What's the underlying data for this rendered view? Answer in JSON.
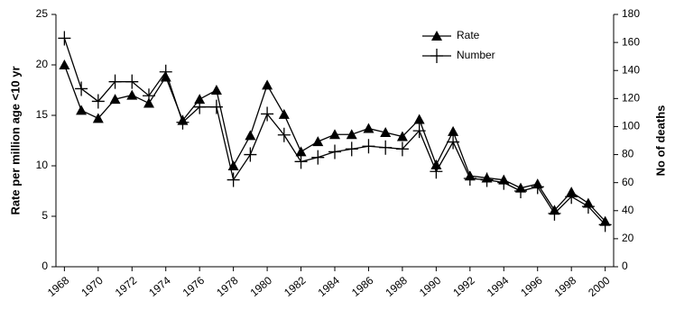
{
  "chart_data": {
    "type": "line",
    "y_label": "Rate per million age <10  yr",
    "y2_label": "No of deaths",
    "x": [
      1968,
      1969,
      1970,
      1971,
      1972,
      1973,
      1974,
      1975,
      1976,
      1977,
      1978,
      1979,
      1980,
      1981,
      1982,
      1983,
      1984,
      1985,
      1986,
      1987,
      1988,
      1989,
      1990,
      1991,
      1992,
      1993,
      1994,
      1995,
      1996,
      1997,
      1998,
      1999,
      2000
    ],
    "xlim": [
      1967.5,
      2000.5
    ],
    "xticks": [
      1968,
      1970,
      1972,
      1974,
      1976,
      1978,
      1980,
      1982,
      1984,
      1986,
      1988,
      1990,
      1992,
      1994,
      1996,
      1998,
      2000
    ],
    "ylim": [
      0,
      25
    ],
    "yticks": [
      0,
      5,
      10,
      15,
      20,
      25
    ],
    "y2lim": [
      0,
      180
    ],
    "y2ticks": [
      0,
      20,
      40,
      60,
      80,
      100,
      120,
      140,
      160,
      180
    ],
    "legend": "upper-right",
    "series": [
      {
        "name": "Rate",
        "color": "#000000",
        "marker": "triangle",
        "values": [
          20.0,
          15.5,
          14.7,
          16.6,
          17.0,
          16.2,
          18.8,
          14.5,
          16.6,
          17.5,
          10.0,
          13.0,
          18.0,
          15.1,
          11.4,
          12.4,
          13.1,
          13.1,
          13.7,
          13.3,
          12.9,
          14.6,
          10.1,
          13.4,
          9.0,
          8.8,
          8.6,
          7.8,
          8.2,
          5.6,
          7.4,
          6.3,
          4.5
        ]
      },
      {
        "name": "Number",
        "color": "#000000",
        "marker": "plus",
        "axis": "y2",
        "values": [
          163,
          127,
          118,
          132,
          132,
          122,
          139,
          103,
          114,
          114,
          62,
          80,
          109,
          94,
          75,
          78,
          82,
          84,
          86,
          85,
          84,
          97,
          68,
          89,
          63,
          62,
          60,
          54,
          57,
          38,
          50,
          43,
          30
        ]
      }
    ]
  }
}
